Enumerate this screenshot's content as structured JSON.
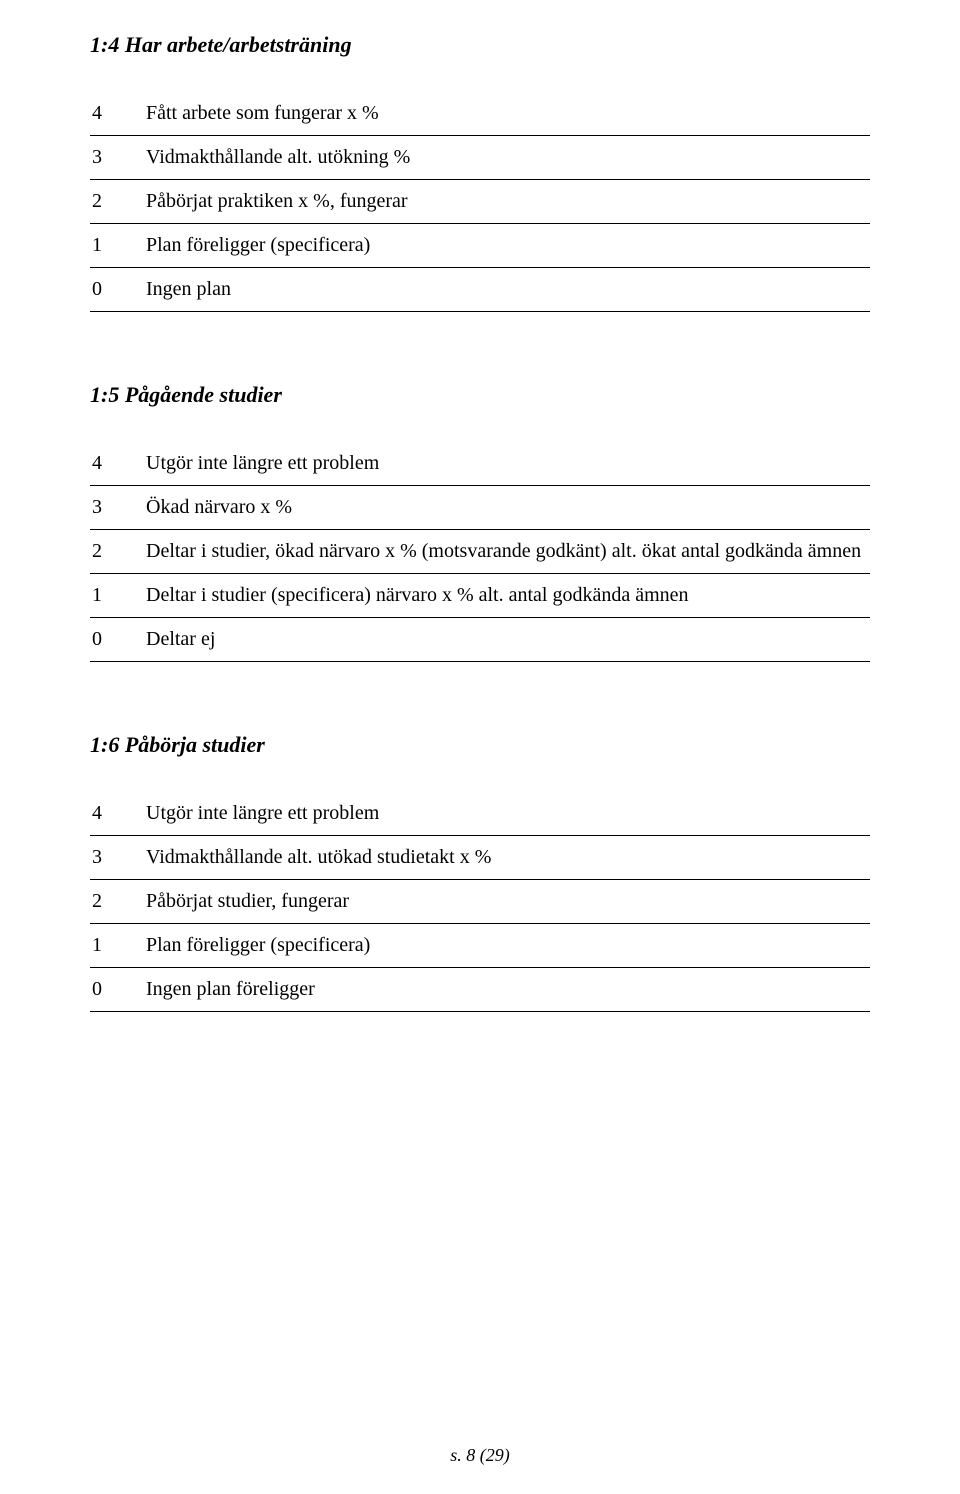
{
  "section1": {
    "title": "1:4 Har arbete/arbetsträning",
    "rows": [
      {
        "n": "4",
        "t": "Fått arbete som fungerar x %"
      },
      {
        "n": "3",
        "t": "Vidmakthållande alt. utökning %"
      },
      {
        "n": "2",
        "t": "Påbörjat praktiken x %, fungerar"
      },
      {
        "n": "1",
        "t": "Plan föreligger (specificera)"
      },
      {
        "n": "0",
        "t": "Ingen plan"
      }
    ]
  },
  "section2": {
    "title": "1:5 Pågående studier",
    "rows": [
      {
        "n": "4",
        "t": "Utgör inte längre ett problem"
      },
      {
        "n": "3",
        "t": "Ökad närvaro x %"
      },
      {
        "n": "2",
        "t": "Deltar i studier, ökad närvaro x % (motsvarande godkänt) alt. ökat antal godkända ämnen"
      },
      {
        "n": "1",
        "t": "Deltar i studier (specificera) närvaro x % alt. antal godkända ämnen"
      },
      {
        "n": "0",
        "t": "Deltar ej"
      }
    ]
  },
  "section3": {
    "title": "1:6 Påbörja studier",
    "rows": [
      {
        "n": "4",
        "t": "Utgör inte längre ett problem"
      },
      {
        "n": "3",
        "t": "Vidmakthållande alt. utökad studietakt x %"
      },
      {
        "n": "2",
        "t": "Påbörjat studier, fungerar"
      },
      {
        "n": "1",
        "t": "Plan föreligger (specificera)"
      },
      {
        "n": "0",
        "t": "Ingen plan föreligger"
      }
    ]
  },
  "footer": "s. 8 (29)"
}
